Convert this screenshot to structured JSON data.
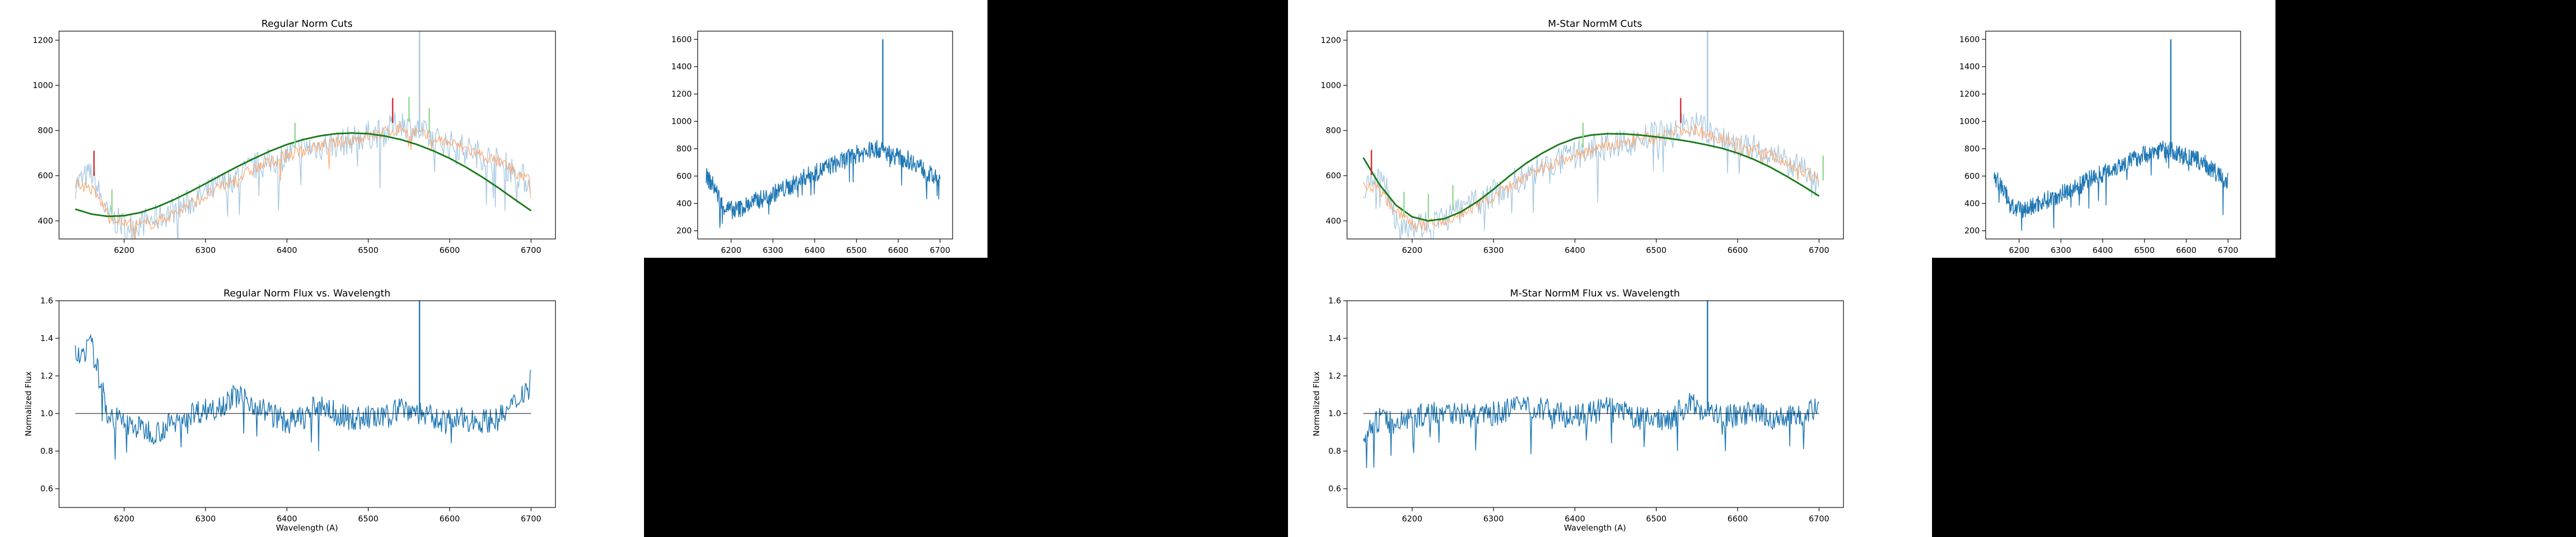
{
  "colors": {
    "background": "#000000",
    "figure": "#ffffff",
    "blue": "#1f77b4",
    "light_blue": "#a6c8e0",
    "orange": "#ffa76f",
    "green": "#1a7a1a",
    "red": "#d62728",
    "cut_green": "#8fd98f"
  },
  "chart_data": [
    {
      "id": "regular_cuts",
      "type": "line",
      "title": "Regular Norm Cuts",
      "xlabel": "",
      "ylabel": "",
      "xlim": [
        6120,
        6730
      ],
      "ylim": [
        320,
        1240
      ],
      "xticks": [
        6200,
        6300,
        6400,
        6500,
        6600,
        6700
      ],
      "yticks": [
        400,
        600,
        800,
        1000,
        1200
      ],
      "grid": false,
      "x": [
        6140,
        6160,
        6180,
        6200,
        6220,
        6240,
        6260,
        6280,
        6300,
        6320,
        6340,
        6360,
        6380,
        6400,
        6420,
        6440,
        6460,
        6480,
        6500,
        6520,
        6540,
        6560,
        6580,
        6600,
        6620,
        6640,
        6660,
        6680,
        6700
      ],
      "series": [
        {
          "style": "raw",
          "values": [
            560,
            610,
            420,
            380,
            390,
            410,
            450,
            480,
            520,
            560,
            600,
            640,
            660,
            690,
            720,
            730,
            740,
            760,
            780,
            790,
            840,
            800,
            760,
            740,
            720,
            690,
            660,
            620,
            560
          ]
        },
        {
          "style": "kept",
          "values": [
            570,
            540,
            440,
            390,
            380,
            395,
            430,
            470,
            510,
            550,
            590,
            630,
            660,
            690,
            710,
            730,
            745,
            760,
            775,
            790,
            810,
            790,
            765,
            745,
            720,
            690,
            660,
            620,
            580
          ]
        },
        {
          "style": "fit",
          "values": [
            452,
            430,
            420,
            423,
            437,
            461,
            492,
            527,
            565,
            604,
            642,
            677,
            710,
            738,
            760,
            776,
            786,
            789,
            786,
            776,
            760,
            738,
            710,
            677,
            638,
            594,
            546,
            495,
            445
          ]
        }
      ],
      "spike_x": 6563,
      "spike_top": 1240,
      "cuts": [
        {
          "x": 6163,
          "color": "red"
        },
        {
          "x": 6185,
          "color": "green"
        },
        {
          "x": 6410,
          "color": "green"
        },
        {
          "x": 6530,
          "color": "red"
        },
        {
          "x": 6550,
          "color": "green"
        },
        {
          "x": 6575,
          "color": "green"
        }
      ]
    },
    {
      "id": "regular_raw",
      "type": "line",
      "title": "",
      "xlabel": "",
      "ylabel": "",
      "xlim": [
        6120,
        6730
      ],
      "ylim": [
        140,
        1660
      ],
      "xticks": [
        6200,
        6300,
        6400,
        6500,
        6600,
        6700
      ],
      "yticks": [
        200,
        400,
        600,
        800,
        1000,
        1200,
        1400,
        1600
      ],
      "grid": false,
      "x": [
        6140,
        6160,
        6180,
        6200,
        6220,
        6240,
        6260,
        6280,
        6300,
        6320,
        6340,
        6360,
        6380,
        6400,
        6420,
        6440,
        6460,
        6480,
        6500,
        6520,
        6540,
        6560,
        6580,
        6600,
        6620,
        6640,
        6660,
        6680,
        6700
      ],
      "series": [
        {
          "style": "blue",
          "values": [
            600,
            520,
            380,
            350,
            360,
            390,
            420,
            440,
            470,
            500,
            520,
            560,
            600,
            620,
            650,
            680,
            700,
            730,
            760,
            770,
            800,
            790,
            760,
            740,
            720,
            700,
            650,
            600,
            560
          ]
        }
      ],
      "spike_x": 6563,
      "spike_top": 1600
    },
    {
      "id": "regular_norm",
      "type": "line",
      "title": "Regular Norm Flux vs. Wavelength",
      "xlabel": "Wavelength (A)",
      "ylabel": "Normalized Flux",
      "xlim": [
        6120,
        6730
      ],
      "ylim": [
        0.5,
        1.6
      ],
      "xticks": [
        6200,
        6300,
        6400,
        6500,
        6600,
        6700
      ],
      "yticks": [
        0.6,
        0.8,
        1.0,
        1.2,
        1.4,
        1.6
      ],
      "grid": false,
      "hline": 1.0,
      "x": [
        6140,
        6160,
        6180,
        6200,
        6220,
        6240,
        6260,
        6280,
        6300,
        6320,
        6340,
        6360,
        6380,
        6400,
        6420,
        6440,
        6460,
        6480,
        6500,
        6520,
        6540,
        6560,
        6580,
        6600,
        6620,
        6640,
        6660,
        6680,
        6700
      ],
      "series": [
        {
          "style": "blue",
          "values": [
            1.3,
            1.36,
            1.0,
            0.95,
            0.92,
            0.9,
            0.95,
            1.0,
            1.02,
            1.05,
            1.1,
            1.05,
            1.0,
            0.95,
            0.98,
            1.05,
            1.0,
            0.97,
            0.98,
            0.97,
            1.04,
            1.01,
            0.97,
            0.96,
            0.97,
            0.96,
            0.97,
            1.05,
            1.18
          ]
        }
      ],
      "spike_x": 6563,
      "spike_top": 1.6
    },
    {
      "id": "mstar_cuts",
      "type": "line",
      "title": "M-Star NormM Cuts",
      "xlabel": "",
      "ylabel": "",
      "xlim": [
        6120,
        6730
      ],
      "ylim": [
        320,
        1240
      ],
      "xticks": [
        6200,
        6300,
        6400,
        6500,
        6600,
        6700
      ],
      "yticks": [
        400,
        600,
        800,
        1000,
        1200
      ],
      "grid": false,
      "x": [
        6140,
        6160,
        6180,
        6200,
        6220,
        6240,
        6260,
        6280,
        6300,
        6320,
        6340,
        6360,
        6380,
        6400,
        6420,
        6440,
        6460,
        6480,
        6500,
        6520,
        6540,
        6560,
        6580,
        6600,
        6620,
        6640,
        6660,
        6680,
        6700
      ],
      "series": [
        {
          "style": "raw",
          "values": [
            560,
            610,
            420,
            380,
            390,
            410,
            450,
            480,
            520,
            560,
            600,
            640,
            660,
            690,
            720,
            730,
            740,
            760,
            780,
            790,
            840,
            800,
            760,
            740,
            720,
            690,
            660,
            620,
            560
          ]
        },
        {
          "style": "kept",
          "values": [
            570,
            540,
            440,
            390,
            380,
            395,
            430,
            470,
            510,
            550,
            590,
            630,
            660,
            690,
            710,
            730,
            745,
            760,
            775,
            790,
            810,
            790,
            765,
            745,
            720,
            690,
            660,
            620,
            580
          ]
        },
        {
          "style": "fit",
          "values": [
            680,
            560,
            470,
            418,
            400,
            410,
            440,
            485,
            540,
            600,
            655,
            700,
            738,
            765,
            780,
            786,
            785,
            780,
            772,
            763,
            752,
            738,
            722,
            700,
            672,
            638,
            598,
            555,
            510
          ]
        }
      ],
      "spike_x": 6563,
      "spike_top": 1240,
      "cuts": [
        {
          "x": 6150,
          "color": "red"
        },
        {
          "x": 6190,
          "color": "green"
        },
        {
          "x": 6220,
          "color": "green"
        },
        {
          "x": 6250,
          "color": "green"
        },
        {
          "x": 6410,
          "color": "green"
        },
        {
          "x": 6530,
          "color": "red"
        },
        {
          "x": 6705,
          "color": "green"
        }
      ]
    },
    {
      "id": "mstar_raw",
      "type": "line",
      "title": "",
      "xlabel": "",
      "ylabel": "",
      "xlim": [
        6120,
        6730
      ],
      "ylim": [
        140,
        1660
      ],
      "xticks": [
        6200,
        6300,
        6400,
        6500,
        6600,
        6700
      ],
      "yticks": [
        200,
        400,
        600,
        800,
        1000,
        1200,
        1400,
        1600
      ],
      "grid": false,
      "x": [
        6140,
        6160,
        6180,
        6200,
        6220,
        6240,
        6260,
        6280,
        6300,
        6320,
        6340,
        6360,
        6380,
        6400,
        6420,
        6440,
        6460,
        6480,
        6500,
        6520,
        6540,
        6560,
        6580,
        6600,
        6620,
        6640,
        6660,
        6680,
        6700
      ],
      "series": [
        {
          "style": "blue",
          "values": [
            600,
            520,
            380,
            350,
            360,
            390,
            420,
            440,
            470,
            500,
            520,
            560,
            600,
            620,
            650,
            680,
            700,
            730,
            760,
            770,
            800,
            790,
            760,
            740,
            720,
            700,
            650,
            600,
            560
          ]
        }
      ],
      "spike_x": 6563,
      "spike_top": 1600
    },
    {
      "id": "mstar_norm",
      "type": "line",
      "title": "M-Star NormM Flux vs. Wavelength",
      "xlabel": "Wavelength (A)",
      "ylabel": "Normalized Flux",
      "xlim": [
        6120,
        6730
      ],
      "ylim": [
        0.5,
        1.6
      ],
      "xticks": [
        6200,
        6300,
        6400,
        6500,
        6600,
        6700
      ],
      "yticks": [
        0.6,
        0.8,
        1.0,
        1.2,
        1.4,
        1.6
      ],
      "grid": false,
      "hline": 1.0,
      "x": [
        6140,
        6160,
        6180,
        6200,
        6220,
        6240,
        6260,
        6280,
        6300,
        6320,
        6340,
        6360,
        6380,
        6400,
        6420,
        6440,
        6460,
        6480,
        6500,
        6520,
        6540,
        6560,
        6580,
        6600,
        6620,
        6640,
        6660,
        6680,
        6700
      ],
      "series": [
        {
          "style": "blue",
          "values": [
            0.88,
            0.97,
            0.95,
            0.98,
            1.0,
            1.02,
            1.0,
            0.98,
            1.0,
            1.02,
            1.05,
            1.02,
            1.0,
            0.98,
            1.0,
            1.03,
            1.0,
            0.97,
            0.97,
            0.98,
            1.05,
            1.02,
            0.98,
            0.99,
            1.0,
            0.98,
            0.97,
            1.0,
            1.05
          ]
        }
      ],
      "spike_x": 6563,
      "spike_top": 1.6
    }
  ]
}
